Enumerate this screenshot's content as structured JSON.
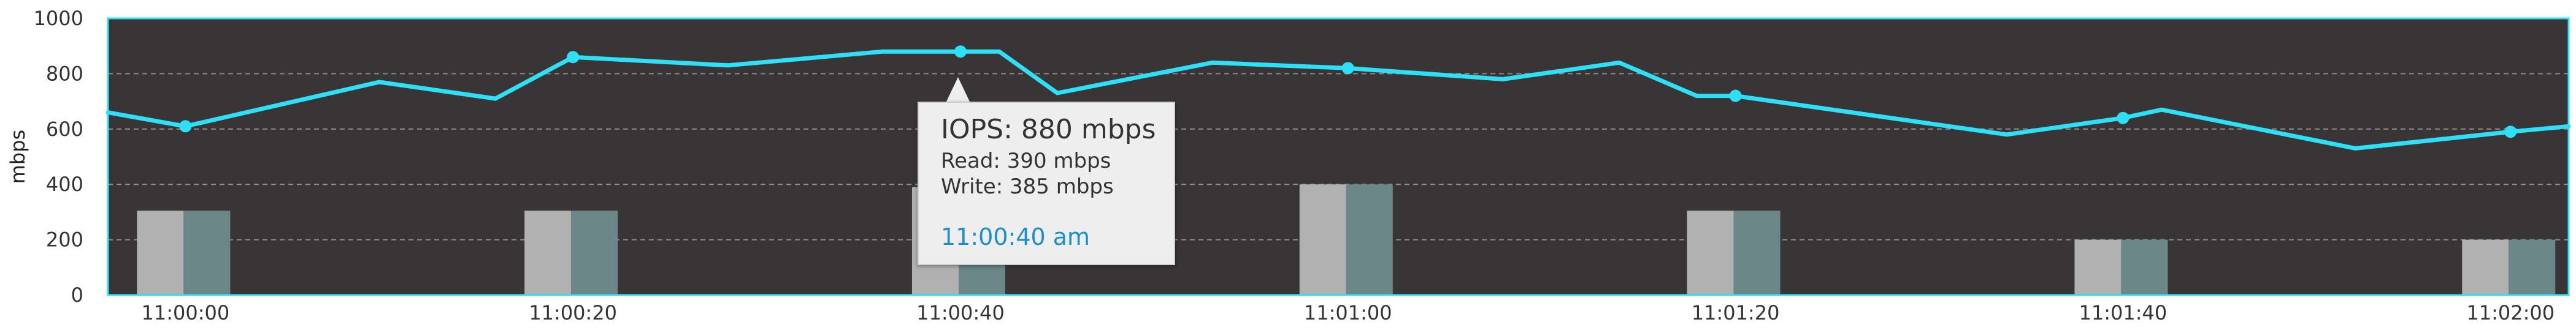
{
  "chart_data": {
    "type": "line",
    "ylabel": "mbps",
    "xlabel": "",
    "ylim": [
      0,
      1000
    ],
    "yticks": [
      0,
      200,
      400,
      600,
      800,
      1000
    ],
    "grid": true,
    "xlim": [
      "10:59:56",
      "11:02:03"
    ],
    "xticks": [
      "11:00:00",
      "11:00:20",
      "11:00:40",
      "11:01:00",
      "11:01:20",
      "11:01:40",
      "11:02:00"
    ],
    "line_color": "#2ee0f5",
    "plot_background": "#393435",
    "series": [
      {
        "name": "IOPS",
        "type": "line",
        "x": [
          "10:59:56",
          "11:00:00",
          "11:00:10",
          "11:00:16",
          "11:00:20",
          "11:00:28",
          "11:00:36",
          "11:00:40",
          "11:00:42",
          "11:00:45",
          "11:00:53",
          "11:01:00",
          "11:01:08",
          "11:01:14",
          "11:01:18",
          "11:01:20",
          "11:01:34",
          "11:01:40",
          "11:01:42",
          "11:01:52",
          "11:02:00",
          "11:02:03"
        ],
        "values": [
          660,
          610,
          770,
          710,
          860,
          830,
          880,
          880,
          880,
          730,
          840,
          820,
          780,
          840,
          720,
          720,
          580,
          640,
          670,
          530,
          590,
          610
        ],
        "markers_at": [
          "11:00:00",
          "11:00:20",
          "11:00:40",
          "11:01:00",
          "11:01:20",
          "11:01:40",
          "11:02:00"
        ]
      },
      {
        "name": "Read",
        "type": "bar",
        "color": "#b1b1b1",
        "x": [
          "11:00:00",
          "11:00:20",
          "11:00:40",
          "11:01:00",
          "11:01:20",
          "11:01:40",
          "11:02:00"
        ],
        "values": [
          305,
          305,
          390,
          400,
          305,
          200,
          200
        ]
      },
      {
        "name": "Write",
        "type": "bar",
        "color": "#6c8787",
        "x": [
          "11:00:00",
          "11:00:20",
          "11:00:40",
          "11:01:00",
          "11:01:20",
          "11:01:40",
          "11:02:00"
        ],
        "values": [
          305,
          305,
          385,
          400,
          305,
          200,
          200
        ]
      }
    ]
  },
  "tooltip": {
    "title": "IOPS: 880 mbps",
    "read": "Read: 390 mbps",
    "write": "Write: 385 mbps",
    "time": "11:00:40 am"
  }
}
